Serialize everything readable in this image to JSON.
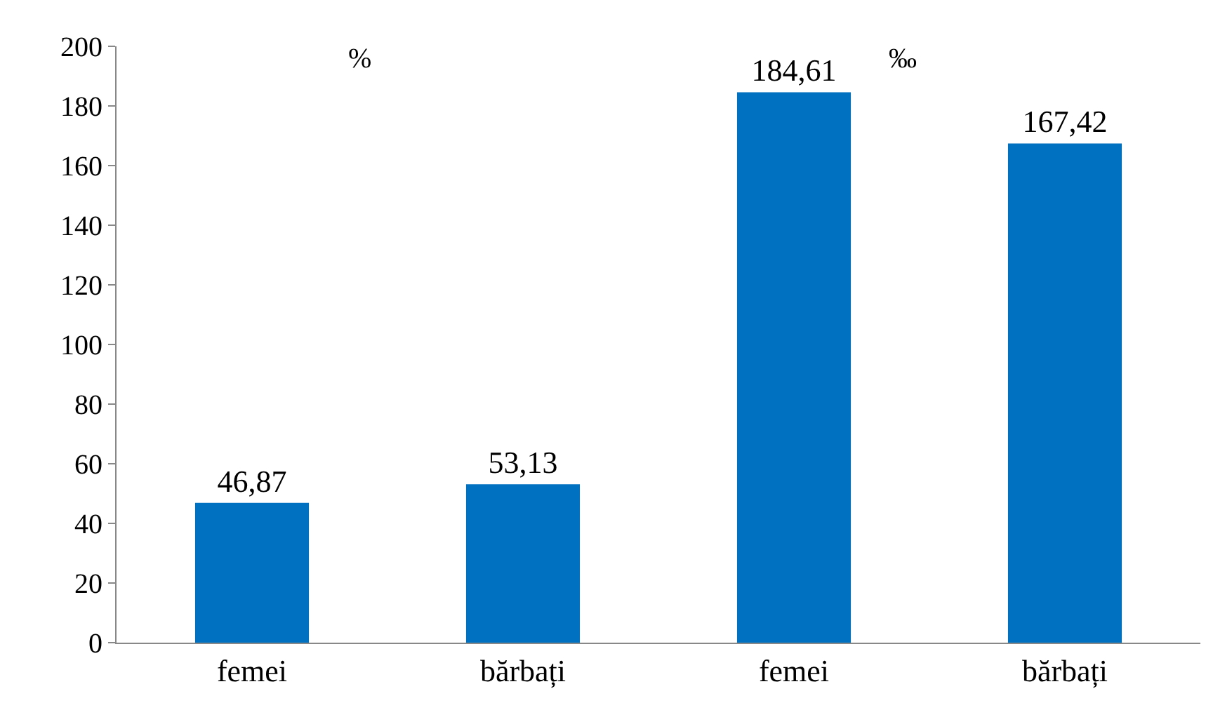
{
  "chart_data": {
    "type": "bar",
    "categories": [
      "femei",
      "bărbați",
      "femei",
      "bărbați"
    ],
    "values": [
      46.87,
      53.13,
      184.61,
      167.42
    ],
    "value_labels": [
      "46,87",
      "53,13",
      "184,61",
      "167,42"
    ],
    "color": "#0070c0",
    "ylim": [
      0,
      200
    ],
    "yticks": [
      0,
      20,
      40,
      60,
      80,
      100,
      120,
      140,
      160,
      180,
      200
    ],
    "grid": false,
    "annotations": [
      "%",
      "‰"
    ]
  }
}
